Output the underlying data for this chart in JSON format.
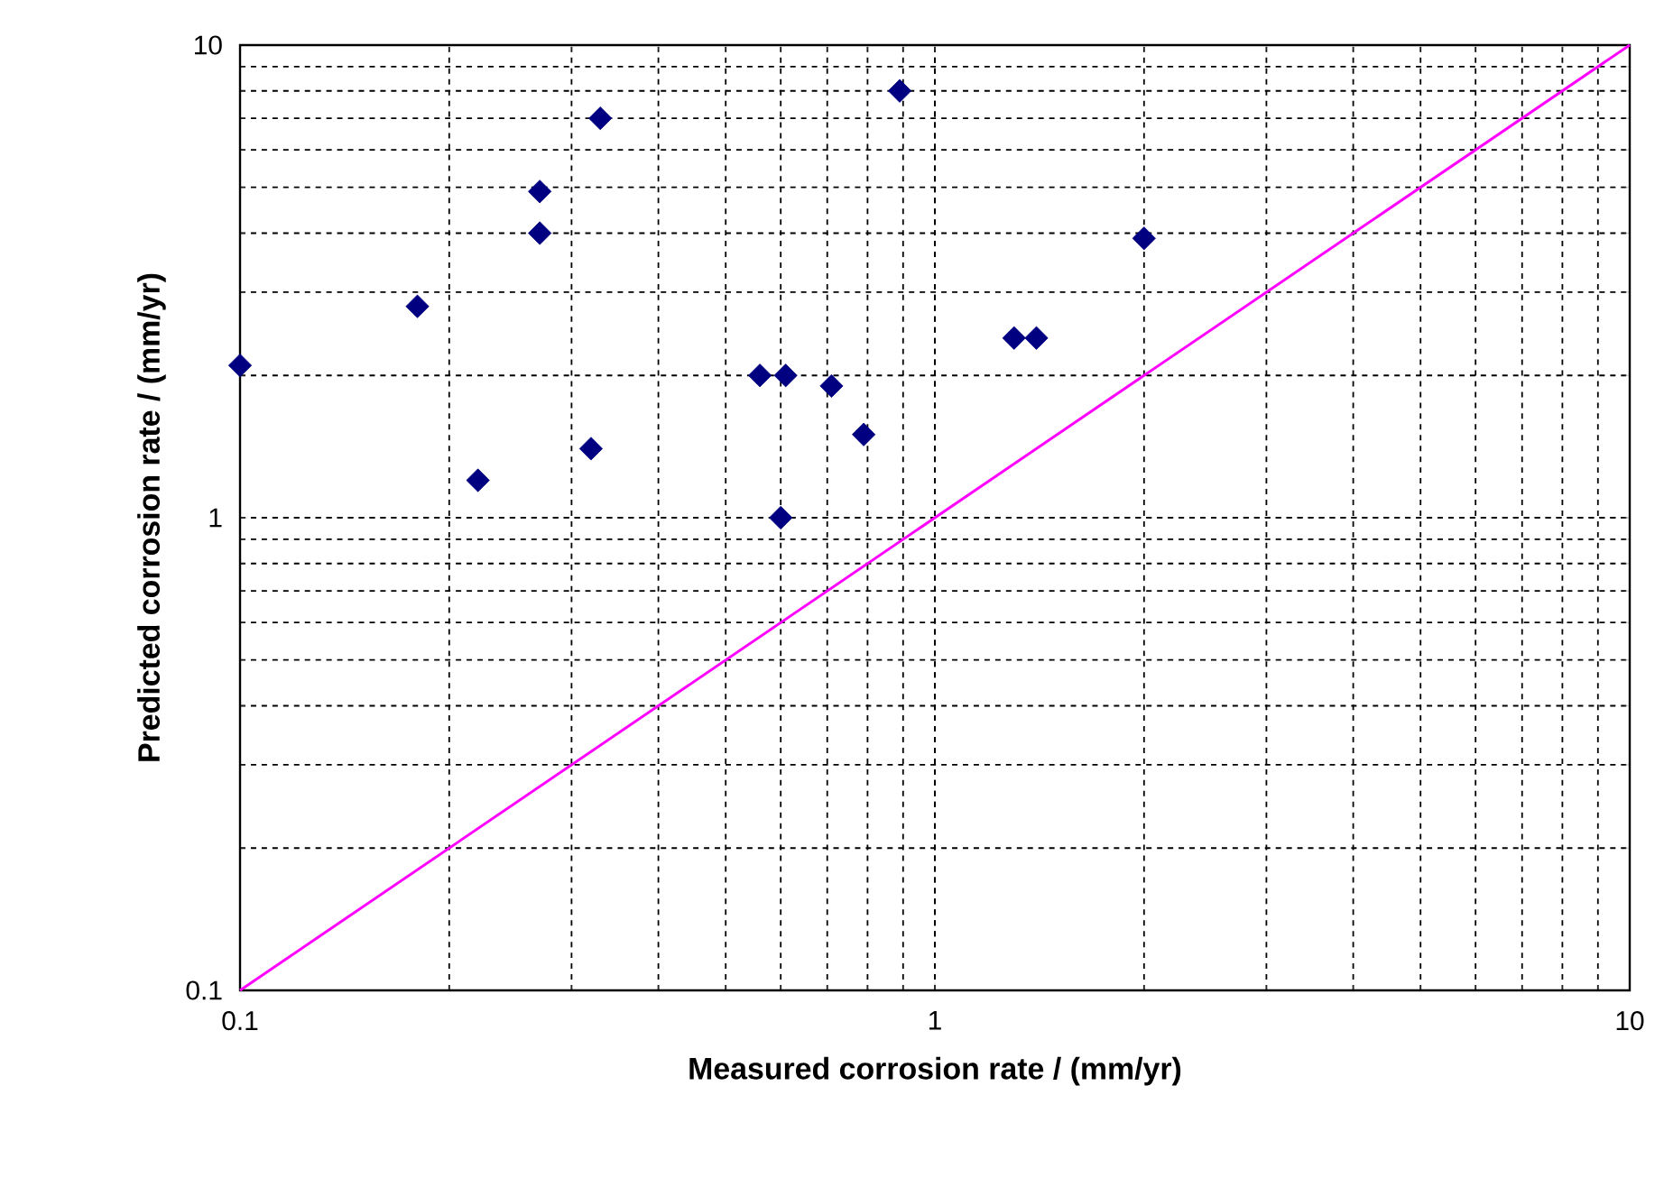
{
  "chart_data": {
    "type": "scatter",
    "xlabel": "Measured corrosion rate / (mm/yr)",
    "ylabel": "Predicted corrosion rate / (mm/yr)",
    "log": "xy",
    "grid": true,
    "marker": "diamond",
    "xlim": [
      0.1,
      10
    ],
    "ylim": [
      0.1,
      10
    ],
    "xticks": [
      0.1,
      1,
      10
    ],
    "yticks": [
      0.1,
      1,
      10
    ],
    "series": [
      {
        "color": "#000080",
        "x": [
          0.1,
          0.18,
          0.22,
          0.27,
          0.27,
          0.33,
          0.32,
          0.56,
          0.6,
          0.61,
          0.71,
          0.79,
          0.89,
          1.3,
          1.4,
          2.0
        ],
        "values": [
          2.1,
          2.8,
          1.2,
          4.9,
          4.0,
          7.0,
          1.4,
          2.0,
          1.0,
          2.0,
          1.9,
          1.5,
          8.0,
          2.4,
          2.4,
          3.9
        ]
      },
      {
        "type": "line",
        "color": "#ff00ff",
        "marker": "none",
        "x": [
          0.1,
          10
        ],
        "values": [
          0.1,
          10
        ]
      }
    ]
  }
}
